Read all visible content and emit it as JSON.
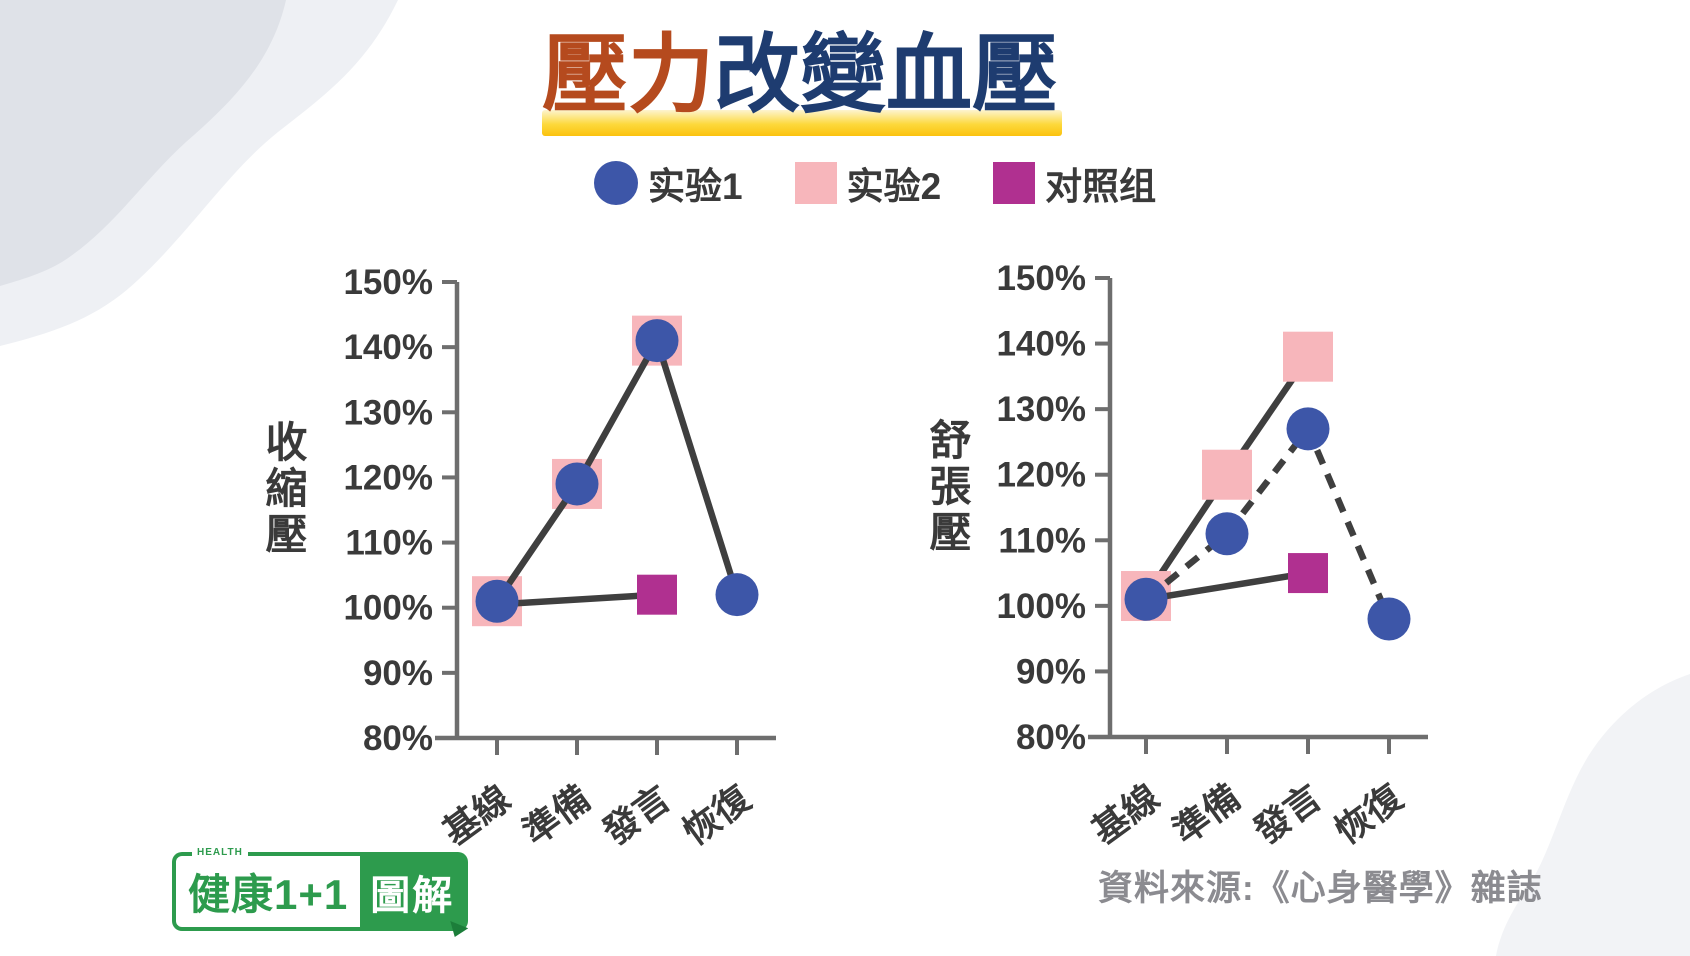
{
  "title": {
    "part1": "壓力",
    "part2": "改變血壓"
  },
  "legend": {
    "items": [
      {
        "id": "exp1",
        "label": "实验1",
        "marker": "circle",
        "color": "#3d56a8"
      },
      {
        "id": "exp2",
        "label": "实验2",
        "marker": "square",
        "color": "#f7b6bb"
      },
      {
        "id": "control",
        "label": "对照组",
        "marker": "square",
        "color": "#b03090"
      }
    ]
  },
  "chart_data": [
    {
      "type": "line",
      "ylabel": "收縮壓",
      "categories": [
        "基線",
        "準備",
        "發言",
        "恢復"
      ],
      "yticks": [
        "150%",
        "140%",
        "130%",
        "120%",
        "110%",
        "100%",
        "90%",
        "80%"
      ],
      "ylim": [
        80,
        150
      ],
      "grid": false,
      "legend_position": "top",
      "series": [
        {
          "id": "exp2",
          "name": "实验2",
          "marker": "square",
          "marker_size": 50,
          "color": "#f7b6bb",
          "line": "none",
          "points": [
            {
              "c": 0,
              "v": 101
            },
            {
              "c": 1,
              "v": 119
            },
            {
              "c": 2,
              "v": 141
            }
          ]
        },
        {
          "id": "control",
          "name": "对照组",
          "marker": "square",
          "marker_size": 40,
          "color": "#b03090",
          "line": "solid",
          "points": [
            {
              "c": 0,
              "v": 100.5,
              "m": false
            },
            {
              "c": 2,
              "v": 102
            }
          ]
        },
        {
          "id": "exp1",
          "name": "实验1",
          "marker": "circle",
          "marker_size": 43,
          "color": "#3d56a8",
          "line": "solid",
          "points": [
            {
              "c": 0,
              "v": 101
            },
            {
              "c": 1,
              "v": 119
            },
            {
              "c": 2,
              "v": 141
            },
            {
              "c": 3,
              "v": 102
            }
          ]
        }
      ]
    },
    {
      "type": "line",
      "ylabel": "舒張壓",
      "categories": [
        "基線",
        "準備",
        "發言",
        "恢復"
      ],
      "yticks": [
        "150%",
        "140%",
        "130%",
        "120%",
        "110%",
        "100%",
        "90%",
        "80%"
      ],
      "ylim": [
        80,
        150
      ],
      "grid": false,
      "legend_position": "top",
      "series": [
        {
          "id": "exp2",
          "name": "实验2",
          "marker": "square",
          "marker_size": 50,
          "color": "#f7b6bb",
          "line": "solid",
          "points": [
            {
              "c": 0,
              "v": 101.5
            },
            {
              "c": 1,
              "v": 120
            },
            {
              "c": 2,
              "v": 138
            }
          ]
        },
        {
          "id": "control",
          "name": "对照组",
          "marker": "square",
          "marker_size": 40,
          "color": "#b03090",
          "line": "solid",
          "points": [
            {
              "c": 0,
              "v": 101,
              "m": false
            },
            {
              "c": 2,
              "v": 105
            }
          ]
        },
        {
          "id": "exp1",
          "name": "实验1",
          "marker": "circle",
          "marker_size": 43,
          "color": "#3d56a8",
          "line": "dashed",
          "points": [
            {
              "c": 0,
              "v": 101
            },
            {
              "c": 1,
              "v": 111
            },
            {
              "c": 2,
              "v": 127
            },
            {
              "c": 3,
              "v": 98
            }
          ]
        }
      ]
    }
  ],
  "source_text": "資料來源:《心身醫學》雜誌",
  "logo": {
    "left": "健康1+1",
    "right": "圖解",
    "small": "HEALTH"
  },
  "colors": {
    "title_accent": "#b54a1e",
    "title_main": "#1e3c70",
    "underline_yellow": "#fbc20e",
    "exp1_blue": "#3d56a8",
    "exp2_pink": "#f7b6bb",
    "control_magenta": "#b03090",
    "line_dark": "#3f3f3f",
    "axis_gray": "#6e6e6e",
    "logo_green": "#2d9b4d",
    "source_gray": "#8b8b90",
    "blob_gray_dark": "#dfe2e8",
    "blob_gray_light": "#eef0f4"
  }
}
